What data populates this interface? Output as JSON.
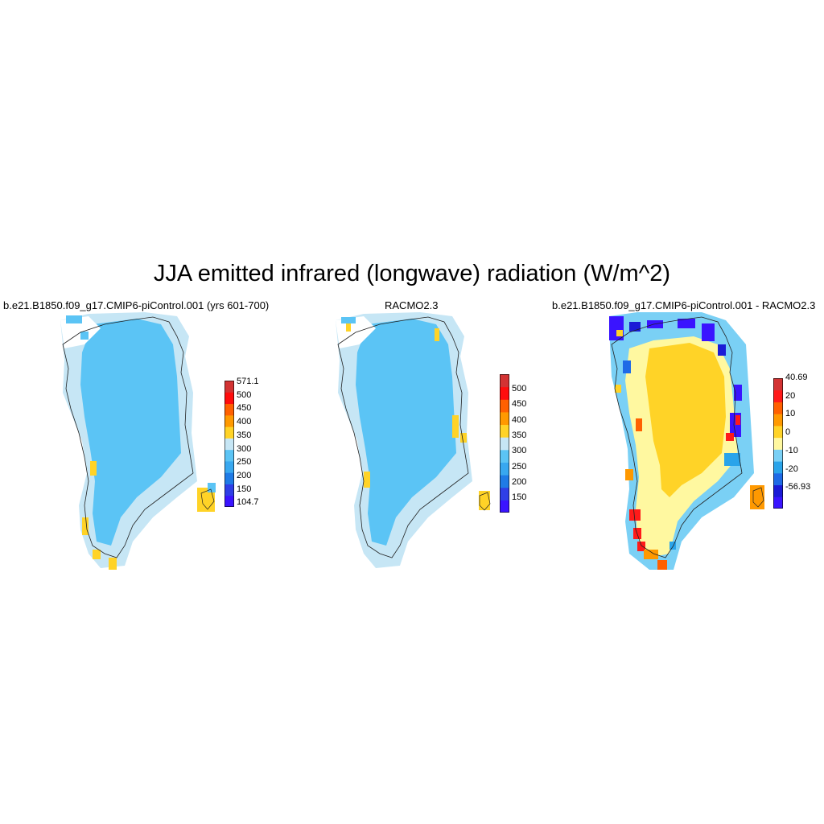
{
  "title": "JJA emitted infrared (longwave) radiation (W/m^2)",
  "panels": [
    {
      "title": "b.e21.B1850.f09_g17.CMIP6-piControl.001 (yrs 601-700)",
      "colorbar": {
        "colors": [
          "#3a14ff",
          "#2f3fe6",
          "#1f7be6",
          "#38a8f0",
          "#5bc4f5",
          "#c6e6f5",
          "#ffd327",
          "#ff9900",
          "#ff6000",
          "#ff0d0d",
          "#d33333"
        ],
        "labels": [
          "571.1",
          "500",
          "450",
          "400",
          "350",
          "300",
          "250",
          "200",
          "150",
          "104.7"
        ]
      }
    },
    {
      "title": "RACMO2.3",
      "colorbar": {
        "colors": [
          "#3a14ff",
          "#2f3fe6",
          "#1f7be6",
          "#38a8f0",
          "#5bc4f5",
          "#c6e6f5",
          "#ffd327",
          "#ff9900",
          "#ff6000",
          "#ff0d0d",
          "#d33333"
        ],
        "labels": [
          "500",
          "450",
          "400",
          "350",
          "300",
          "250",
          "200",
          "150"
        ]
      }
    },
    {
      "title": "b.e21.B1850.f09_g17.CMIP6-piControl.001 - RACMO2.3",
      "colorbar": {
        "colors": [
          "#3a14ff",
          "#1b1bd6",
          "#1f6ae6",
          "#2aa4ea",
          "#7ad0f5",
          "#fff8a0",
          "#ffd327",
          "#ff9900",
          "#ff6000",
          "#ff1a1a",
          "#d33333"
        ],
        "labels": [
          "40.69",
          "20",
          "10",
          "0",
          "-10",
          "-20",
          "-56.93"
        ]
      }
    }
  ]
}
